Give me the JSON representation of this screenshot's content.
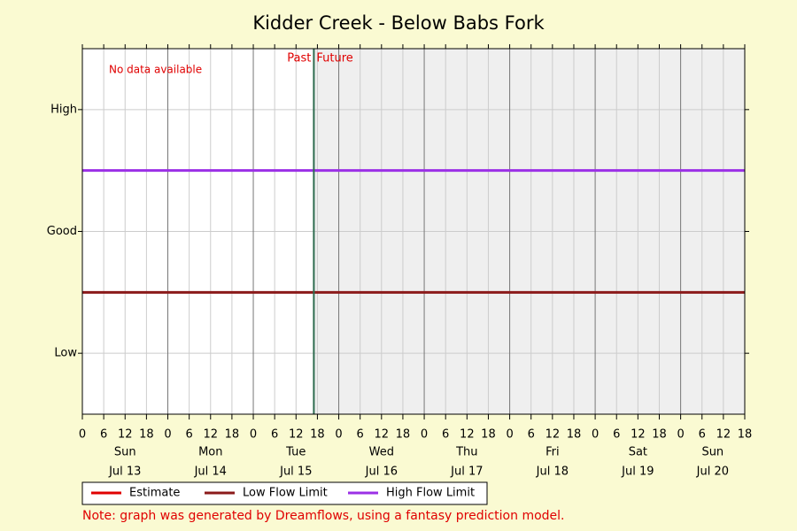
{
  "chart_data": {
    "type": "line",
    "title": "Kidder Creek - Below Babs Fork",
    "x": [
      0,
      186
    ],
    "xlim": [
      0,
      186
    ],
    "xticks": [
      {
        "value": 0,
        "label": "0"
      },
      {
        "value": 6,
        "label": "6"
      },
      {
        "value": 12,
        "label": "12"
      },
      {
        "value": 18,
        "label": "18"
      },
      {
        "value": 24,
        "label": "0"
      },
      {
        "value": 30,
        "label": "6"
      },
      {
        "value": 36,
        "label": "12"
      },
      {
        "value": 42,
        "label": "18"
      },
      {
        "value": 48,
        "label": "0"
      },
      {
        "value": 54,
        "label": "6"
      },
      {
        "value": 60,
        "label": "12"
      },
      {
        "value": 66,
        "label": "18"
      },
      {
        "value": 72,
        "label": "0"
      },
      {
        "value": 78,
        "label": "6"
      },
      {
        "value": 84,
        "label": "12"
      },
      {
        "value": 90,
        "label": "18"
      },
      {
        "value": 96,
        "label": "0"
      },
      {
        "value": 102,
        "label": "6"
      },
      {
        "value": 108,
        "label": "12"
      },
      {
        "value": 114,
        "label": "18"
      },
      {
        "value": 120,
        "label": "0"
      },
      {
        "value": 126,
        "label": "6"
      },
      {
        "value": 132,
        "label": "12"
      },
      {
        "value": 138,
        "label": "18"
      },
      {
        "value": 144,
        "label": "0"
      },
      {
        "value": 150,
        "label": "6"
      },
      {
        "value": 156,
        "label": "12"
      },
      {
        "value": 162,
        "label": "18"
      },
      {
        "value": 168,
        "label": "0"
      },
      {
        "value": 174,
        "label": "6"
      },
      {
        "value": 180,
        "label": "12"
      },
      {
        "value": 186,
        "label": "18"
      }
    ],
    "day_labels": [
      {
        "value": 12,
        "label": "Sun",
        "date": "Jul 13"
      },
      {
        "value": 36,
        "label": "Mon",
        "date": "Jul 14"
      },
      {
        "value": 60,
        "label": "Tue",
        "date": "Jul 15"
      },
      {
        "value": 84,
        "label": "Wed",
        "date": "Jul 16"
      },
      {
        "value": 108,
        "label": "Thu",
        "date": "Jul 17"
      },
      {
        "value": 132,
        "label": "Fri",
        "date": "Jul 18"
      },
      {
        "value": 156,
        "label": "Sat",
        "date": "Jul 19"
      },
      {
        "value": 177,
        "label": "Sun",
        "date": "Jul 20"
      }
    ],
    "ylim": [
      0,
      3
    ],
    "yticks": [
      {
        "value": 0.5,
        "label": "Low"
      },
      {
        "value": 1.5,
        "label": "Good"
      },
      {
        "value": 2.5,
        "label": "High"
      }
    ],
    "grid": true,
    "now": 65,
    "past_label": "Past",
    "future_label": "Future",
    "future_color": "#efefef",
    "now_color": "#2e6b4f",
    "series": [
      {
        "name": "Estimate",
        "color": "#e00000",
        "values": [
          null,
          null
        ]
      },
      {
        "name": "Low Flow Limit",
        "color": "#8b1a1a",
        "values": [
          1,
          1
        ]
      },
      {
        "name": "High Flow Limit",
        "color": "#9b30e6",
        "values": [
          2,
          2
        ]
      }
    ],
    "annotation": "No data available",
    "note": "Note: graph was generated by Dreamflows, using a fantasy prediction model."
  }
}
